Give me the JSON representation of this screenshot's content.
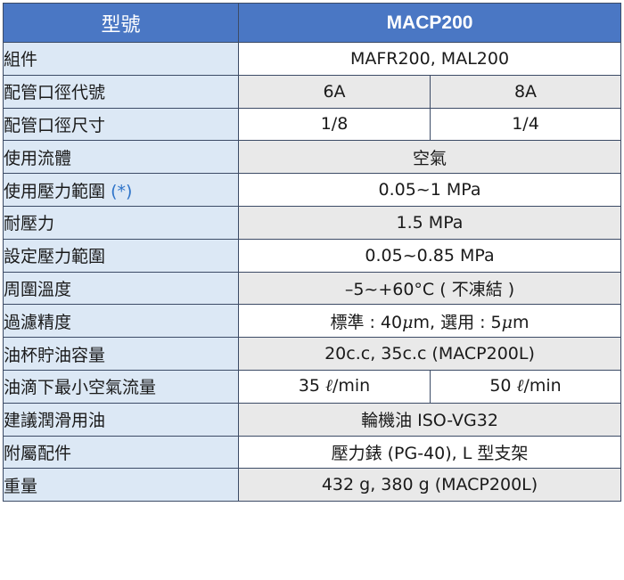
{
  "header": {
    "label": "型號",
    "model": "MACP200"
  },
  "rows": {
    "components": {
      "label": "組件",
      "value": "MAFR200, MAL200"
    },
    "port_code": {
      "label": "配管口徑代號",
      "a": "6A",
      "b": "8A"
    },
    "port_size": {
      "label": "配管口徑尺寸",
      "a": "1/8",
      "b": "1/4"
    },
    "fluid": {
      "label": "使用流體",
      "value": "空氣"
    },
    "pressure_range": {
      "label": "使用壓力範圍",
      "note": "(*)",
      "value": "0.05~1 MPa"
    },
    "proof_pressure": {
      "label": "耐壓力",
      "value": "1.5 MPa"
    },
    "set_pressure": {
      "label": "設定壓力範圍",
      "value": "0.05~0.85 MPa"
    },
    "ambient_temp": {
      "label": "周圍溫度",
      "value": "–5~+60°C ( 不凍結 )"
    },
    "filtration": {
      "label": "過濾精度",
      "value_prefix": "標準 : 40",
      "mu1": "μ",
      "value_mid": "m, 選用 : 5",
      "mu2": "μ",
      "value_suffix": "m"
    },
    "bowl_capacity": {
      "label": "油杯貯油容量",
      "value": "20c.c, 35c.c (MACP200L)"
    },
    "min_flow": {
      "label": "油滴下最小空氣流量",
      "a_num": "35 ",
      "a_unit_l": "ℓ",
      "a_unit": "/min",
      "b_num": "50 ",
      "b_unit_l": "ℓ",
      "b_unit": "/min"
    },
    "lubricant": {
      "label": "建議潤滑用油",
      "value": "輪機油 ISO-VG32"
    },
    "accessories": {
      "label": "附屬配件",
      "value": "壓力錶 (PG-40), L 型支架"
    },
    "weight": {
      "label": "重量",
      "value": "432 g, 380 g (MACP200L)"
    }
  }
}
